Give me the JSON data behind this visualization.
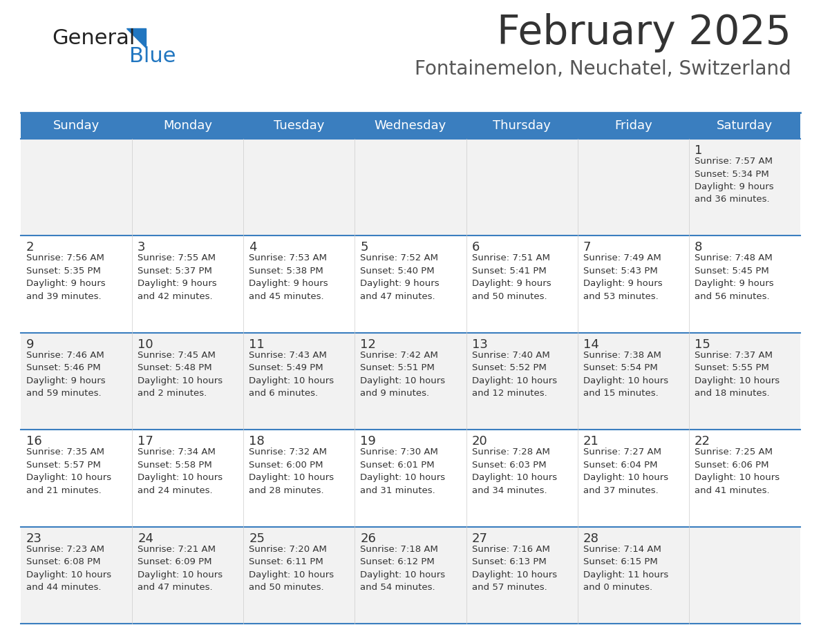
{
  "title": "February 2025",
  "subtitle": "Fontainemelon, Neuchatel, Switzerland",
  "days_of_week": [
    "Sunday",
    "Monday",
    "Tuesday",
    "Wednesday",
    "Thursday",
    "Friday",
    "Saturday"
  ],
  "header_bg": "#3a7ebf",
  "header_text": "#ffffff",
  "row_bg_odd": "#f2f2f2",
  "row_bg_even": "#ffffff",
  "cell_text": "#333333",
  "day_num_color": "#333333",
  "border_color": "#3a7ebf",
  "title_color": "#333333",
  "subtitle_color": "#555555",
  "calendar_data": [
    [
      {
        "day": null,
        "info": null
      },
      {
        "day": null,
        "info": null
      },
      {
        "day": null,
        "info": null
      },
      {
        "day": null,
        "info": null
      },
      {
        "day": null,
        "info": null
      },
      {
        "day": null,
        "info": null
      },
      {
        "day": 1,
        "info": "Sunrise: 7:57 AM\nSunset: 5:34 PM\nDaylight: 9 hours\nand 36 minutes."
      }
    ],
    [
      {
        "day": 2,
        "info": "Sunrise: 7:56 AM\nSunset: 5:35 PM\nDaylight: 9 hours\nand 39 minutes."
      },
      {
        "day": 3,
        "info": "Sunrise: 7:55 AM\nSunset: 5:37 PM\nDaylight: 9 hours\nand 42 minutes."
      },
      {
        "day": 4,
        "info": "Sunrise: 7:53 AM\nSunset: 5:38 PM\nDaylight: 9 hours\nand 45 minutes."
      },
      {
        "day": 5,
        "info": "Sunrise: 7:52 AM\nSunset: 5:40 PM\nDaylight: 9 hours\nand 47 minutes."
      },
      {
        "day": 6,
        "info": "Sunrise: 7:51 AM\nSunset: 5:41 PM\nDaylight: 9 hours\nand 50 minutes."
      },
      {
        "day": 7,
        "info": "Sunrise: 7:49 AM\nSunset: 5:43 PM\nDaylight: 9 hours\nand 53 minutes."
      },
      {
        "day": 8,
        "info": "Sunrise: 7:48 AM\nSunset: 5:45 PM\nDaylight: 9 hours\nand 56 minutes."
      }
    ],
    [
      {
        "day": 9,
        "info": "Sunrise: 7:46 AM\nSunset: 5:46 PM\nDaylight: 9 hours\nand 59 minutes."
      },
      {
        "day": 10,
        "info": "Sunrise: 7:45 AM\nSunset: 5:48 PM\nDaylight: 10 hours\nand 2 minutes."
      },
      {
        "day": 11,
        "info": "Sunrise: 7:43 AM\nSunset: 5:49 PM\nDaylight: 10 hours\nand 6 minutes."
      },
      {
        "day": 12,
        "info": "Sunrise: 7:42 AM\nSunset: 5:51 PM\nDaylight: 10 hours\nand 9 minutes."
      },
      {
        "day": 13,
        "info": "Sunrise: 7:40 AM\nSunset: 5:52 PM\nDaylight: 10 hours\nand 12 minutes."
      },
      {
        "day": 14,
        "info": "Sunrise: 7:38 AM\nSunset: 5:54 PM\nDaylight: 10 hours\nand 15 minutes."
      },
      {
        "day": 15,
        "info": "Sunrise: 7:37 AM\nSunset: 5:55 PM\nDaylight: 10 hours\nand 18 minutes."
      }
    ],
    [
      {
        "day": 16,
        "info": "Sunrise: 7:35 AM\nSunset: 5:57 PM\nDaylight: 10 hours\nand 21 minutes."
      },
      {
        "day": 17,
        "info": "Sunrise: 7:34 AM\nSunset: 5:58 PM\nDaylight: 10 hours\nand 24 minutes."
      },
      {
        "day": 18,
        "info": "Sunrise: 7:32 AM\nSunset: 6:00 PM\nDaylight: 10 hours\nand 28 minutes."
      },
      {
        "day": 19,
        "info": "Sunrise: 7:30 AM\nSunset: 6:01 PM\nDaylight: 10 hours\nand 31 minutes."
      },
      {
        "day": 20,
        "info": "Sunrise: 7:28 AM\nSunset: 6:03 PM\nDaylight: 10 hours\nand 34 minutes."
      },
      {
        "day": 21,
        "info": "Sunrise: 7:27 AM\nSunset: 6:04 PM\nDaylight: 10 hours\nand 37 minutes."
      },
      {
        "day": 22,
        "info": "Sunrise: 7:25 AM\nSunset: 6:06 PM\nDaylight: 10 hours\nand 41 minutes."
      }
    ],
    [
      {
        "day": 23,
        "info": "Sunrise: 7:23 AM\nSunset: 6:08 PM\nDaylight: 10 hours\nand 44 minutes."
      },
      {
        "day": 24,
        "info": "Sunrise: 7:21 AM\nSunset: 6:09 PM\nDaylight: 10 hours\nand 47 minutes."
      },
      {
        "day": 25,
        "info": "Sunrise: 7:20 AM\nSunset: 6:11 PM\nDaylight: 10 hours\nand 50 minutes."
      },
      {
        "day": 26,
        "info": "Sunrise: 7:18 AM\nSunset: 6:12 PM\nDaylight: 10 hours\nand 54 minutes."
      },
      {
        "day": 27,
        "info": "Sunrise: 7:16 AM\nSunset: 6:13 PM\nDaylight: 10 hours\nand 57 minutes."
      },
      {
        "day": 28,
        "info": "Sunrise: 7:14 AM\nSunset: 6:15 PM\nDaylight: 11 hours\nand 0 minutes."
      },
      {
        "day": null,
        "info": null
      }
    ]
  ],
  "logo_text_general": "General",
  "logo_text_blue": "Blue",
  "logo_general_color": "#222222",
  "logo_blue_color": "#2176c0",
  "logo_triangle_color": "#2176c0"
}
